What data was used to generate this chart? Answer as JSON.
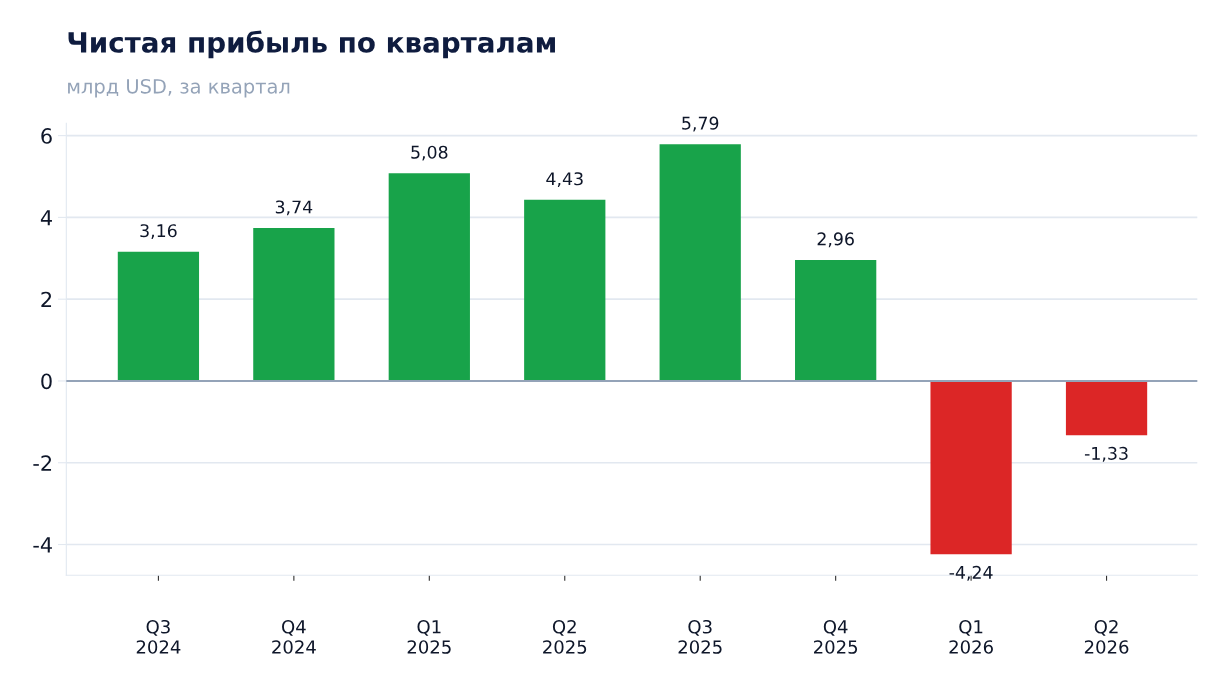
{
  "chart_data": {
    "type": "bar",
    "title": "Чистая прибыль по кварталам",
    "subtitle": "млрд USD, за квартал",
    "categories": [
      "Q3\n2024",
      "Q4\n2024",
      "Q1\n2025",
      "Q2\n2025",
      "Q3\n2025",
      "Q4\n2025",
      "Q1\n2026",
      "Q2\n2026"
    ],
    "values": [
      3.16,
      3.74,
      5.08,
      4.43,
      5.79,
      2.96,
      -4.24,
      -1.33
    ],
    "colors": [
      "#18a34a",
      "#18a34a",
      "#18a34a",
      "#18a34a",
      "#18a34a",
      "#18a34a",
      "#dc2626",
      "#dc2626"
    ],
    "value_labels": [
      "3,16",
      "3,74",
      "5,08",
      "4,43",
      "5,79",
      "2,96",
      "-4,24",
      "-1,33"
    ],
    "ylim": [
      -4.75,
      6.3
    ],
    "yticks": [
      -4,
      -2,
      0,
      2,
      4,
      6
    ],
    "grid": "y",
    "ref_lines": [
      {
        "axis": "y",
        "value": 0,
        "color": "#94a3b8"
      }
    ]
  }
}
